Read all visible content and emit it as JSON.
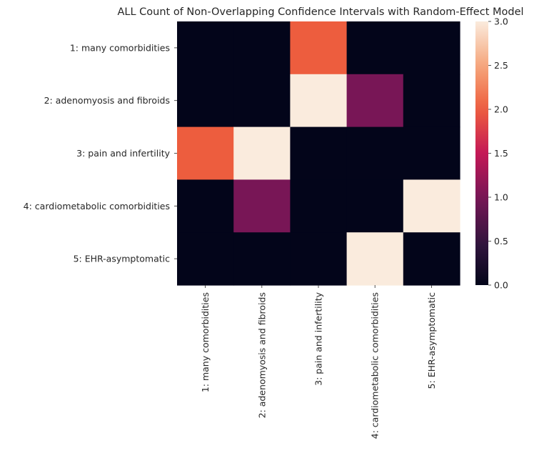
{
  "chart_data": {
    "type": "heatmap",
    "title": "ALL Count of Non-Overlapping Confidence Intervals with Random-Effect Model",
    "xlabel": "",
    "ylabel": "",
    "x_categories": [
      "1: many comorbidities",
      "2: adenomyosis and fibroids",
      "3: pain and infertility",
      "4: cardiometabolic comorbidities",
      "5: EHR-asymptomatic"
    ],
    "y_categories": [
      "1: many comorbidities",
      "2: adenomyosis and fibroids",
      "3: pain and infertility",
      "4: cardiometabolic comorbidities",
      "5: EHR-asymptomatic"
    ],
    "values": [
      [
        0,
        0,
        2,
        0,
        0
      ],
      [
        0,
        0,
        3,
        1,
        0
      ],
      [
        2,
        3,
        0,
        0,
        0
      ],
      [
        0,
        1,
        0,
        0,
        3
      ],
      [
        0,
        0,
        0,
        3,
        0
      ]
    ],
    "colorbar": {
      "vmin": 0,
      "vmax": 3,
      "ticks": [
        "0.0",
        "0.5",
        "1.0",
        "1.5",
        "2.0",
        "2.5",
        "3.0"
      ],
      "colormap": "rocket"
    },
    "grid": false,
    "legend": "colorbar-right"
  }
}
